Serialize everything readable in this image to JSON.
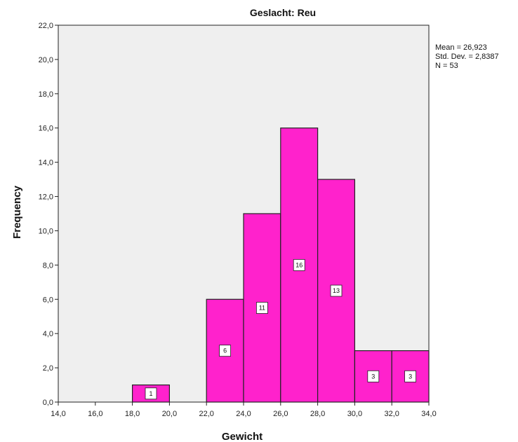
{
  "chart_data": {
    "type": "bar",
    "title": "Geslacht: Reu",
    "xlabel": "Gewicht",
    "ylabel": "Frequency",
    "xlim": [
      14,
      34
    ],
    "ylim": [
      0,
      22
    ],
    "x_ticks": [
      "14,0",
      "16,0",
      "18,0",
      "20,0",
      "22,0",
      "24,0",
      "26,0",
      "28,0",
      "30,0",
      "32,0",
      "34,0"
    ],
    "y_ticks": [
      "0,0",
      "2,0",
      "4,0",
      "6,0",
      "8,0",
      "10,0",
      "12,0",
      "14,0",
      "16,0",
      "18,0",
      "20,0",
      "22,0"
    ],
    "bins": [
      {
        "from": 18,
        "to": 20,
        "value": 1,
        "label": "1"
      },
      {
        "from": 22,
        "to": 24,
        "value": 6,
        "label": "6"
      },
      {
        "from": 24,
        "to": 26,
        "value": 11,
        "label": "11"
      },
      {
        "from": 26,
        "to": 28,
        "value": 16,
        "label": "16"
      },
      {
        "from": 28,
        "to": 30,
        "value": 13,
        "label": "13"
      },
      {
        "from": 30,
        "to": 32,
        "value": 3,
        "label": "3"
      },
      {
        "from": 32,
        "to": 34,
        "value": 3,
        "label": "3"
      }
    ],
    "statistics": {
      "mean": "Mean = 26,923",
      "std_dev": "Std. Dev. = 2,8387",
      "n": "N = 53"
    },
    "colors": {
      "bar": "#ff22cc",
      "plot_background": "#efefef",
      "outline": "#222222"
    },
    "grid": false
  }
}
